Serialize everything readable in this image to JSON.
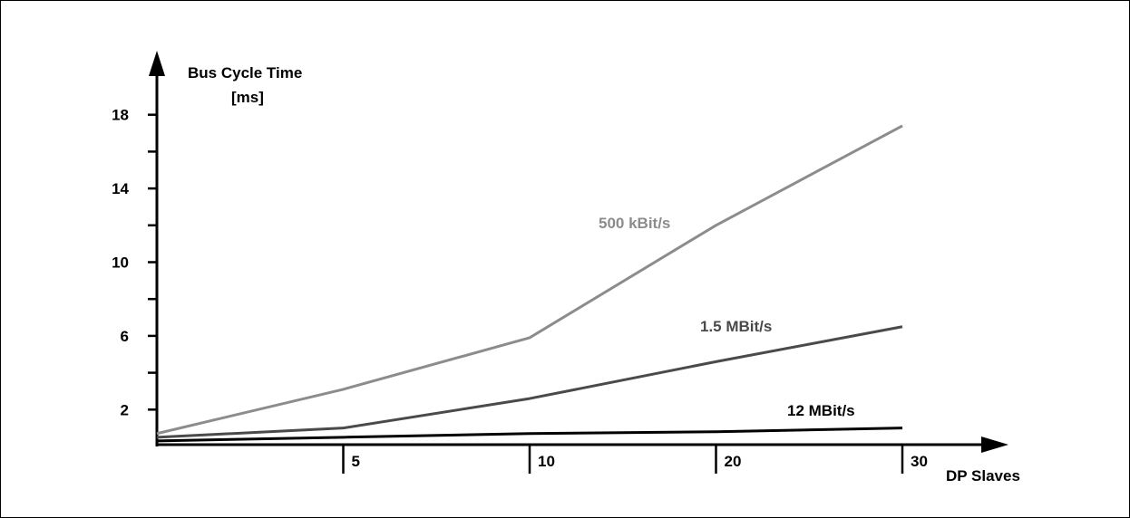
{
  "chart_data": {
    "type": "line",
    "ylabel_line1": "Bus Cycle Time",
    "ylabel_line2": "[ms]",
    "xlabel": "DP Slaves",
    "x_ticks": [
      {
        "label": "5",
        "pos": 1
      },
      {
        "label": "10",
        "pos": 2
      },
      {
        "label": "20",
        "pos": 3
      },
      {
        "label": "30",
        "pos": 4
      }
    ],
    "y_ticks_labeled": [
      2,
      6,
      10,
      14,
      18
    ],
    "y_ticks_minor": [
      4,
      8,
      12,
      16
    ],
    "ylim": [
      0,
      20
    ],
    "xlim": [
      0,
      4.5
    ],
    "series": [
      {
        "name": "500 kBit/s",
        "color": "#8c8c8c",
        "x": [
          0,
          1,
          2,
          3,
          4
        ],
        "y": [
          0.7,
          3.1,
          5.9,
          12.0,
          17.4
        ]
      },
      {
        "name": "1.5 MBit/s",
        "color": "#4a4a4a",
        "x": [
          0,
          1,
          2,
          3,
          4
        ],
        "y": [
          0.5,
          1.0,
          2.6,
          4.6,
          6.5
        ]
      },
      {
        "name": "12 MBit/s",
        "color": "#000000",
        "x": [
          0,
          1,
          2,
          3,
          4
        ],
        "y": [
          0.3,
          0.5,
          0.7,
          0.8,
          1.0
        ]
      }
    ]
  }
}
